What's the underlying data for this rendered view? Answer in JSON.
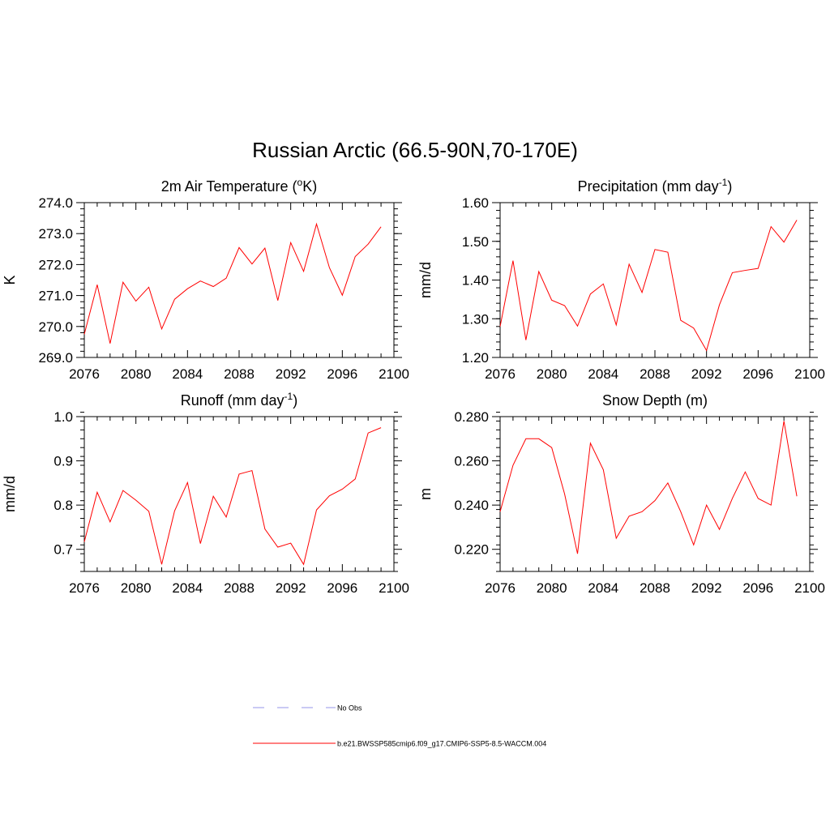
{
  "title": "Russian Arctic (66.5-90N,70-170E)",
  "colors": {
    "model": "#ff0000",
    "obs": "#aaaaee",
    "axis": "#000000"
  },
  "legend": {
    "entries": [
      {
        "label": "No Obs",
        "style": "dashed",
        "color": "#aaaaee"
      },
      {
        "label": "b.e21.BWSSP585cmip6.f09_g17.CMIP6-SSP5-8.5-WACCM.004",
        "style": "solid",
        "color": "#ff0000"
      }
    ]
  },
  "chart_data": [
    {
      "type": "line",
      "title": "2m Air Temperature (",
      "title_sup": "o",
      "title_post": "K)",
      "xlabel": "",
      "ylabel": "K",
      "xlim": [
        2076,
        2100
      ],
      "ylim": [
        269.0,
        274.0
      ],
      "xticks": [
        2076,
        2080,
        2084,
        2088,
        2092,
        2096,
        2100
      ],
      "yticks": [
        "269.0",
        "270.0",
        "271.0",
        "272.0",
        "273.0",
        "274.0"
      ],
      "yminor": 0.2,
      "x": [
        2076,
        2077,
        2078,
        2079,
        2080,
        2081,
        2082,
        2083,
        2084,
        2085,
        2086,
        2087,
        2088,
        2089,
        2090,
        2091,
        2092,
        2093,
        2094,
        2095,
        2096,
        2097,
        2098,
        2099
      ],
      "series": [
        {
          "name": "b.e21.BWSSP585cmip6.f09_g17.CMIP6-SSP5-8.5-WACCM.004",
          "values": [
            269.75,
            271.35,
            269.45,
            271.43,
            270.82,
            271.27,
            269.92,
            270.88,
            271.22,
            271.47,
            271.29,
            271.56,
            272.55,
            272.02,
            272.53,
            270.84,
            272.71,
            271.78,
            273.31,
            271.9,
            271.01,
            272.26,
            272.66,
            273.22
          ]
        }
      ]
    },
    {
      "type": "line",
      "title": "Precipitation (mm day",
      "title_sup": "-1",
      "title_post": ")",
      "xlabel": "",
      "ylabel": "mm/d",
      "xlim": [
        2076,
        2100
      ],
      "ylim": [
        1.2,
        1.6
      ],
      "xticks": [
        2076,
        2080,
        2084,
        2088,
        2092,
        2096,
        2100
      ],
      "yticks": [
        "1.20",
        "1.30",
        "1.40",
        "1.50",
        "1.60"
      ],
      "yminor": 0.02,
      "x": [
        2076,
        2077,
        2078,
        2079,
        2080,
        2081,
        2082,
        2083,
        2084,
        2085,
        2086,
        2087,
        2088,
        2089,
        2090,
        2091,
        2092,
        2093,
        2094,
        2095,
        2096,
        2097,
        2098,
        2099
      ],
      "series": [
        {
          "name": "b.e21.BWSSP585cmip6.f09_g17.CMIP6-SSP5-8.5-WACCM.004",
          "values": [
            1.28,
            1.45,
            1.245,
            1.422,
            1.348,
            1.334,
            1.281,
            1.364,
            1.39,
            1.284,
            1.441,
            1.368,
            1.479,
            1.472,
            1.296,
            1.276,
            1.218,
            1.336,
            1.419,
            1.425,
            1.43,
            1.538,
            1.498,
            1.555
          ]
        }
      ]
    },
    {
      "type": "line",
      "title": "Runoff (mm day",
      "title_sup": "-1",
      "title_post": ")",
      "xlabel": "",
      "ylabel": "mm/d",
      "xlim": [
        2076,
        2100
      ],
      "ylim": [
        0.65,
        1.0
      ],
      "xticks": [
        2076,
        2080,
        2084,
        2088,
        2092,
        2096,
        2100
      ],
      "yticks": [
        "0.7",
        "0.8",
        "0.9",
        "1.0"
      ],
      "ytick_values": [
        0.7,
        0.8,
        0.9,
        1.0
      ],
      "yminor": 0.02,
      "x": [
        2076,
        2077,
        2078,
        2079,
        2080,
        2081,
        2082,
        2083,
        2084,
        2085,
        2086,
        2087,
        2088,
        2089,
        2090,
        2091,
        2092,
        2093,
        2094,
        2095,
        2096,
        2097,
        2098,
        2099
      ],
      "series": [
        {
          "name": "b.e21.BWSSP585cmip6.f09_g17.CMIP6-SSP5-8.5-WACCM.004",
          "values": [
            0.717,
            0.829,
            0.762,
            0.833,
            0.811,
            0.786,
            0.666,
            0.787,
            0.851,
            0.713,
            0.82,
            0.773,
            0.87,
            0.878,
            0.746,
            0.705,
            0.714,
            0.666,
            0.789,
            0.821,
            0.836,
            0.859,
            0.963,
            0.975
          ]
        }
      ]
    },
    {
      "type": "line",
      "title": "Snow Depth (m)",
      "title_sup": "",
      "title_post": "",
      "xlabel": "",
      "ylabel": "m",
      "xlim": [
        2076,
        2100
      ],
      "ylim": [
        0.21,
        0.28
      ],
      "xticks": [
        2076,
        2080,
        2084,
        2088,
        2092,
        2096,
        2100
      ],
      "yticks": [
        "0.220",
        "0.240",
        "0.260",
        "0.280"
      ],
      "ytick_values": [
        0.22,
        0.24,
        0.26,
        0.28
      ],
      "yminor": 0.004,
      "x": [
        2076,
        2077,
        2078,
        2079,
        2080,
        2081,
        2082,
        2083,
        2084,
        2085,
        2086,
        2087,
        2088,
        2089,
        2090,
        2091,
        2092,
        2093,
        2094,
        2095,
        2096,
        2097,
        2098,
        2099
      ],
      "series": [
        {
          "name": "b.e21.BWSSP585cmip6.f09_g17.CMIP6-SSP5-8.5-WACCM.004",
          "values": [
            0.237,
            0.258,
            0.27,
            0.27,
            0.266,
            0.245,
            0.218,
            0.268,
            0.256,
            0.225,
            0.235,
            0.237,
            0.242,
            0.25,
            0.237,
            0.222,
            0.24,
            0.229,
            0.243,
            0.255,
            0.243,
            0.24,
            0.278,
            0.244
          ]
        }
      ]
    }
  ]
}
